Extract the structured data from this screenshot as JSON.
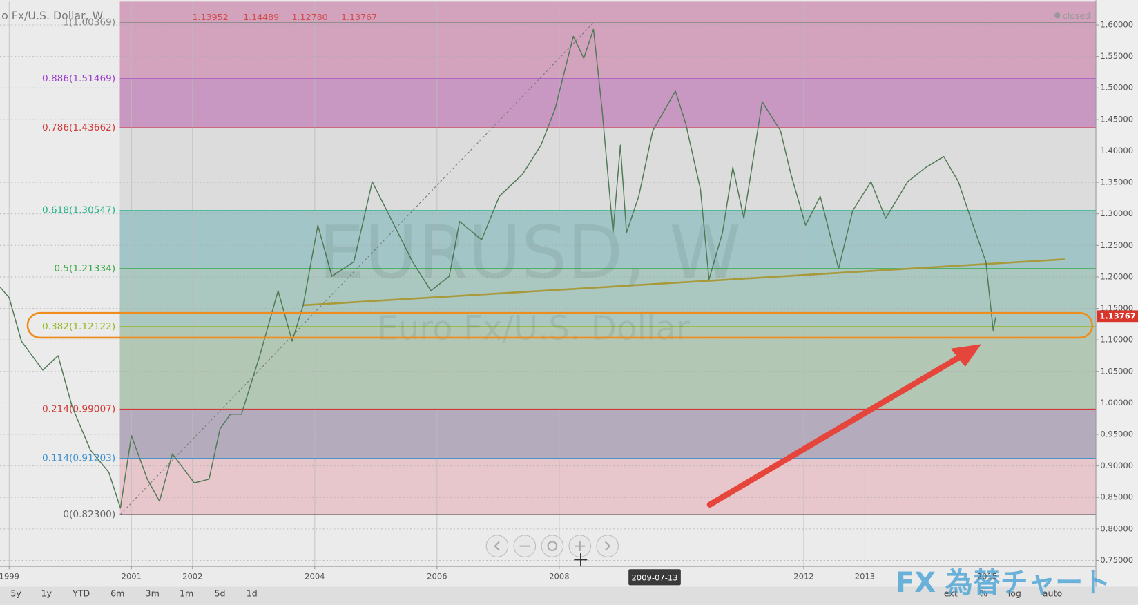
{
  "header": {
    "symbol": "o Fx/U.S. Dollar, W",
    "open": "1.13952",
    "high": "1.14489",
    "low": "1.12780",
    "close": "1.13767",
    "status": "closed"
  },
  "chart_data": {
    "type": "line",
    "title": "EURUSD, W",
    "subtitle": "Euro Fx/U.S. Dollar",
    "xlim": [
      1998.85,
      2016.78
    ],
    "ylim": [
      0.7406,
      1.6369
    ],
    "xticks": [
      1999,
      2001,
      2002,
      2004,
      2006,
      2008,
      2012,
      2013,
      2015
    ],
    "yticks": [
      {
        "value": 0.75,
        "label": "0.75000"
      },
      {
        "value": 0.8,
        "label": "0.80000"
      },
      {
        "value": 0.85,
        "label": "0.85000"
      },
      {
        "value": 0.9,
        "label": "0.90000"
      },
      {
        "value": 0.95,
        "label": "0.95000"
      },
      {
        "value": 1.0,
        "label": "1.00000"
      },
      {
        "value": 1.05,
        "label": "1.05000"
      },
      {
        "value": 1.1,
        "label": "1.10000"
      },
      {
        "value": 1.15,
        "label": "1.15000"
      },
      {
        "value": 1.2,
        "label": "1.20000"
      },
      {
        "value": 1.25,
        "label": "1.25000"
      },
      {
        "value": 1.3,
        "label": "1.30000"
      },
      {
        "value": 1.35,
        "label": "1.35000"
      },
      {
        "value": 1.4,
        "label": "1.40000"
      },
      {
        "value": 1.45,
        "label": "1.45000"
      },
      {
        "value": 1.5,
        "label": "1.50000"
      },
      {
        "value": 1.55,
        "label": "1.55000"
      },
      {
        "value": 1.6,
        "label": "1.60000"
      }
    ],
    "grid": true,
    "crosshair_label": "2009-07-13",
    "last_price": 1.13767,
    "fib_start": 2000.81,
    "fib_levels": [
      {
        "value": 1.60369,
        "label": "1(1.60369)",
        "color": "#888888",
        "band": "#d3a2bd"
      },
      {
        "value": 1.51469,
        "label": "0.886(1.51469)",
        "color": "#9b3fc9",
        "band": "#c898c2"
      },
      {
        "value": 1.43662,
        "label": "0.786(1.43662)",
        "color": "#d03a3a",
        "band": "#dcdcdc"
      },
      {
        "value": 1.30547,
        "label": "0.618(1.30547)",
        "color": "#25b088",
        "band": "#a2c6c8"
      },
      {
        "value": 1.21334,
        "label": "0.5(1.21334)",
        "color": "#3aa848",
        "band": "#aac8c0"
      },
      {
        "value": 1.12122,
        "label": "0.382(1.12122)",
        "color": "#93b825",
        "band": "#b2c8b4"
      },
      {
        "value": 0.99007,
        "label": "0.214(0.99007)",
        "color": "#d03a3a",
        "band": "#b4abbd"
      },
      {
        "value": 0.91203,
        "label": "0.114(0.91203)",
        "color": "#3a8fd0",
        "band": "#e7c6cc"
      },
      {
        "value": 0.823,
        "label": "0(0.82300)",
        "color": "#666666",
        "band": null
      }
    ],
    "trendlines": [
      {
        "x": [
          2000.82,
          2008.56
        ],
        "y": [
          0.823,
          1.60369
        ],
        "color": "#777777",
        "dash": true
      },
      {
        "x": [
          2003.81,
          2016.27
        ],
        "y": [
          1.155,
          1.228
        ],
        "color": "#a89a3a",
        "dash": false
      }
    ],
    "series": [
      {
        "name": "EURUSD, W",
        "color": "#4f7a55",
        "x": [
          1998.85,
          1999,
          1999.2,
          1999.55,
          1999.8,
          2000.03,
          2000.33,
          2000.63,
          2000.82,
          2001.0,
          2001.26,
          2001.46,
          2001.67,
          2002.03,
          2002.27,
          2002.45,
          2002.62,
          2002.8,
          2003.1,
          2003.4,
          2003.63,
          2003.81,
          2004.05,
          2004.28,
          2004.64,
          2004.94,
          2005.3,
          2005.6,
          2005.9,
          2006.2,
          2006.37,
          2006.73,
          2007.02,
          2007.4,
          2007.7,
          2007.93,
          2008.23,
          2008.4,
          2008.56,
          2008.7,
          2008.88,
          2009.0,
          2009.1,
          2009.3,
          2009.53,
          2009.9,
          2010.07,
          2010.31,
          2010.45,
          2010.67,
          2010.84,
          2011.02,
          2011.32,
          2011.62,
          2011.79,
          2012.03,
          2012.27,
          2012.57,
          2012.8,
          2013.1,
          2013.34,
          2013.7,
          2014.0,
          2014.29,
          2014.53,
          2014.77,
          2014.98,
          2015.1,
          2015.14
        ],
        "values": [
          1.184,
          1.167,
          1.098,
          1.052,
          1.075,
          0.994,
          0.925,
          0.89,
          0.833,
          0.948,
          0.879,
          0.844,
          0.919,
          0.873,
          0.879,
          0.959,
          0.982,
          0.982,
          1.075,
          1.178,
          1.098,
          1.155,
          1.282,
          1.201,
          1.224,
          1.351,
          1.282,
          1.224,
          1.178,
          1.201,
          1.288,
          1.259,
          1.328,
          1.363,
          1.409,
          1.466,
          1.582,
          1.547,
          1.593,
          1.466,
          1.27,
          1.409,
          1.27,
          1.328,
          1.432,
          1.495,
          1.443,
          1.339,
          1.196,
          1.27,
          1.374,
          1.293,
          1.478,
          1.432,
          1.363,
          1.282,
          1.328,
          1.213,
          1.305,
          1.351,
          1.293,
          1.351,
          1.374,
          1.391,
          1.351,
          1.282,
          1.224,
          1.115,
          1.136
        ]
      }
    ]
  },
  "toolbar": {
    "ranges": [
      "5y",
      "1y",
      "YTD",
      "6m",
      "3m",
      "1m",
      "5d",
      "1d"
    ],
    "options": [
      "ext",
      "%",
      "log",
      "auto"
    ]
  },
  "brand": "FX 為替チャート"
}
